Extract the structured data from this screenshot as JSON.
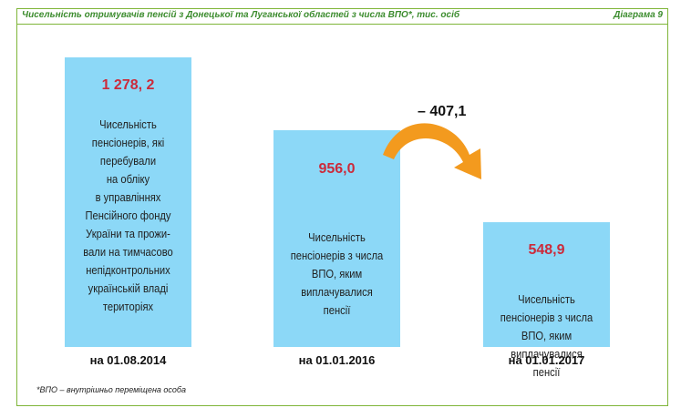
{
  "header": {
    "title": "Чисельність отримувачів пенсій з Донецької та Луганської областей з числа ВПО*, тис. осіб",
    "diagram_label": "Діаграма  9"
  },
  "chart_data": {
    "type": "bar",
    "categories": [
      "на 01.08.2014",
      "на 01.01.2016",
      "на 01.01.2017"
    ],
    "values": [
      1278.2,
      956.0,
      548.9
    ],
    "value_labels": [
      "1 278, 2",
      "956,0",
      "548,9"
    ],
    "descriptions": [
      "Чисельність пенсіонерів, які перебували на обліку в управліннях Пенсійного фонду України та проживали на тимчасово непідконтрольних українській владі територіях",
      "Чисельність пенсіонерів з числа ВПО, яким виплачувалися пенсії",
      "Чисельність пенсіонерів з числа ВПО, яким виплачувалися пенсії"
    ],
    "annotation": "– 407,1",
    "colors": {
      "bar": "#8cd8f7",
      "value": "#cc2a3a",
      "arrow": "#f39a1e",
      "frame": "#7fb539"
    }
  },
  "desc_lines": [
    [
      "Чисельність",
      "пенсіонерів, які",
      "перебували",
      "на обліку",
      "в управліннях",
      "Пенсійного фонду",
      "України та прожи-",
      "вали на тимчасово",
      "непідконтрольних",
      "українській владі",
      "територіях"
    ],
    [
      "Чисельність",
      "пенсіонерів з числа",
      "ВПО, яким",
      "виплачувалися",
      "пенсії"
    ],
    [
      "Чисельність",
      "пенсіонерів з числа",
      "ВПО, яким",
      "виплачувалися",
      "пенсії"
    ]
  ],
  "footnote": "*ВПО – внутрішньо переміщена особа"
}
